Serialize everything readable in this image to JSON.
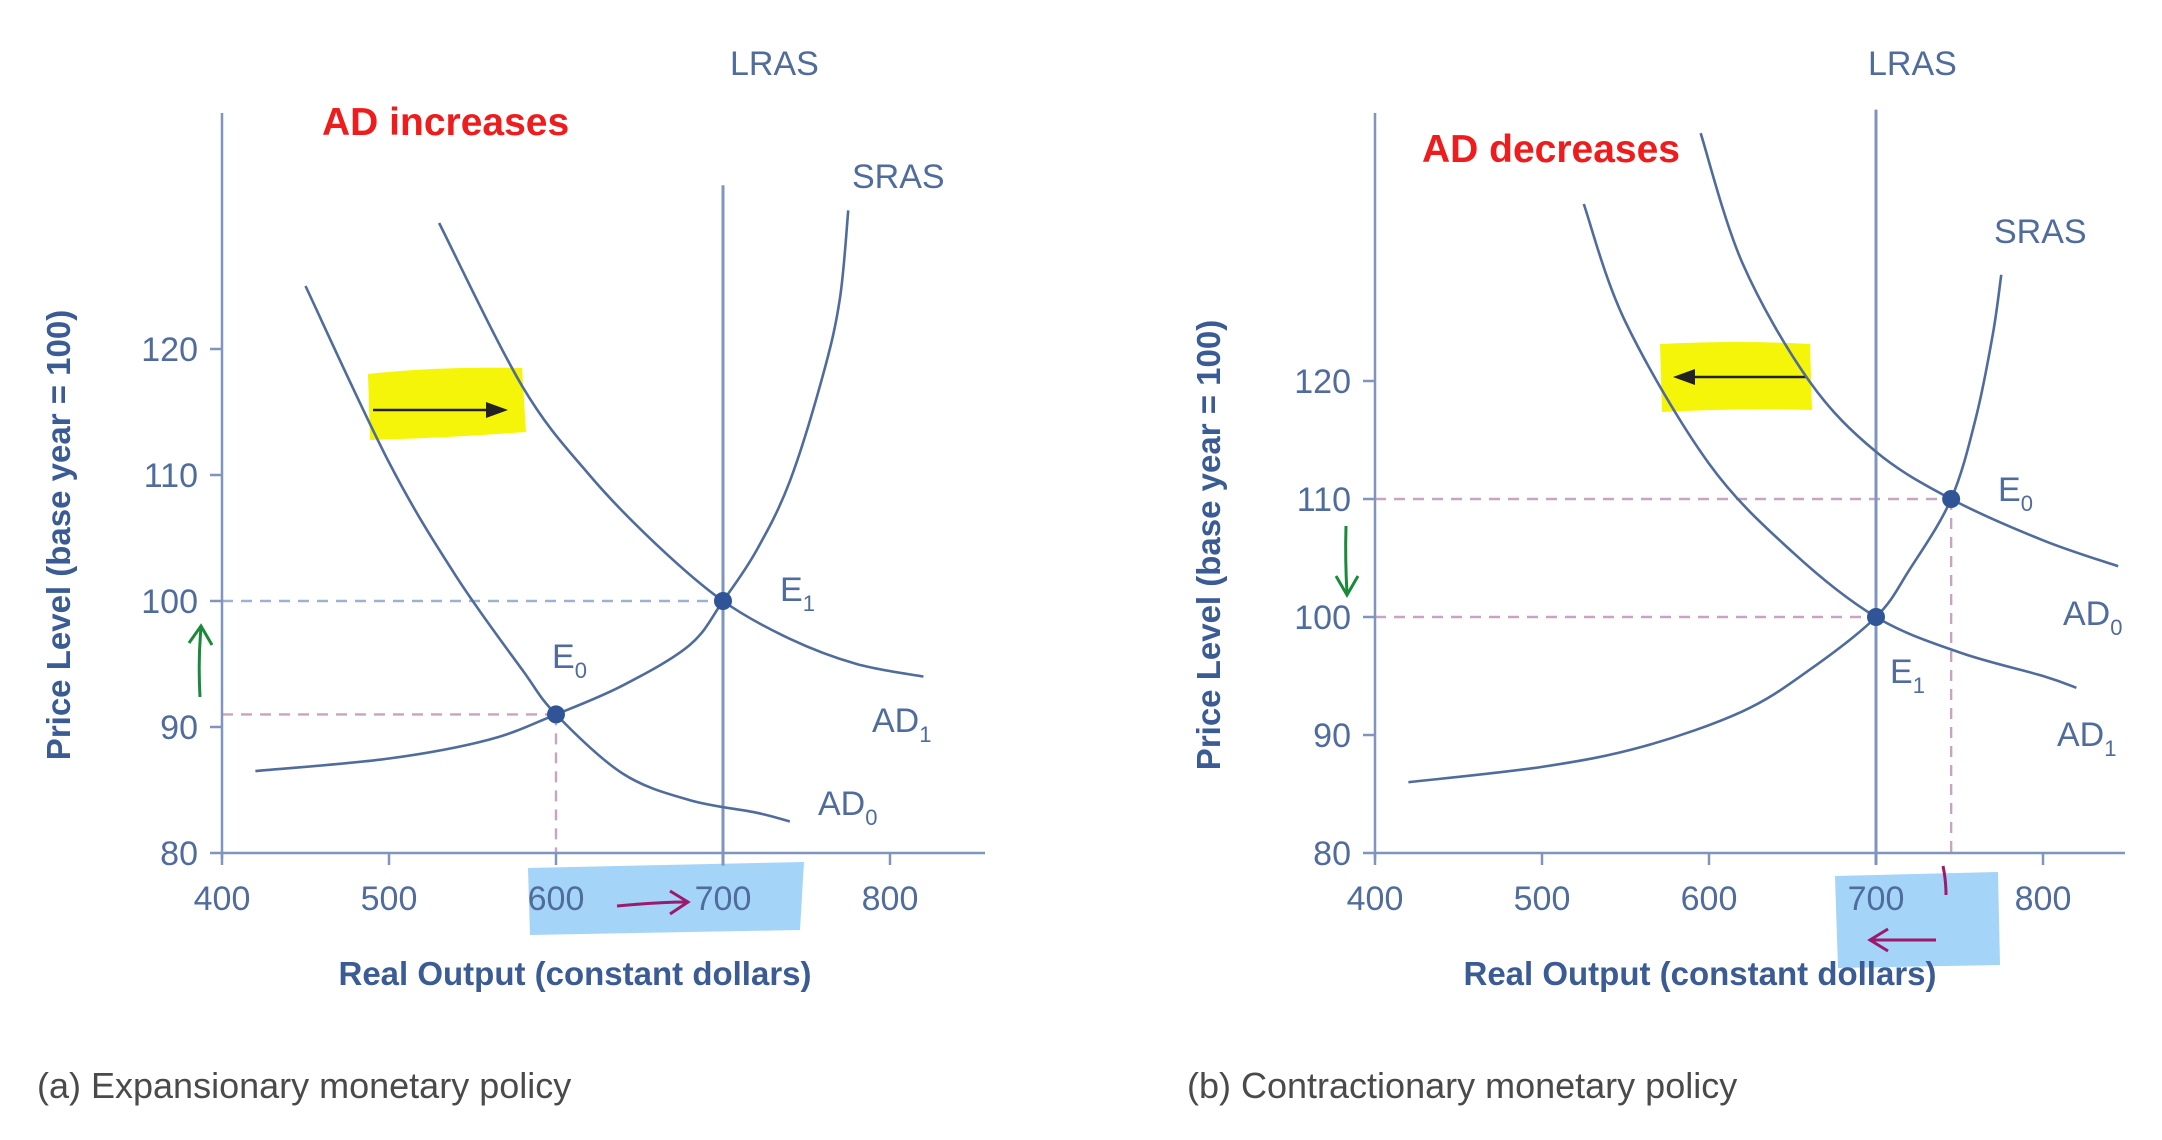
{
  "chart_data": [
    {
      "type": "line",
      "id": "a",
      "caption": "(a)  Expansionary monetary policy",
      "annotation": "AD increases",
      "xlabel": "Real Output (constant dollars)",
      "ylabel": "Price Level (base year = 100)",
      "xlim": [
        400,
        850
      ],
      "ylim": [
        80,
        125
      ],
      "xticks": [
        400,
        500,
        600,
        700,
        800
      ],
      "yticks": [
        80,
        90,
        100,
        110,
        120
      ],
      "series": [
        {
          "name": "SRAS",
          "key": "sras",
          "x": [
            420,
            500,
            560,
            600,
            640,
            680,
            700,
            720,
            740,
            760,
            770,
            775
          ],
          "y": [
            86.5,
            87.5,
            89,
            91,
            93.3,
            96.5,
            100,
            104,
            109.5,
            118,
            124,
            131
          ]
        },
        {
          "name": "LRAS",
          "key": "lras",
          "x": [
            700,
            700
          ],
          "y": [
            79,
            133
          ]
        },
        {
          "name": "AD",
          "sub": "0",
          "key": "ad0",
          "x": [
            450,
            500,
            540,
            580,
            600,
            640,
            680,
            720,
            740
          ],
          "y": [
            125,
            111,
            102,
            94.5,
            91,
            86.3,
            84.2,
            83.2,
            82.5
          ]
        },
        {
          "name": "AD",
          "sub": "1",
          "key": "ad1",
          "x": [
            530,
            580,
            620,
            660,
            700,
            740,
            780,
            820
          ],
          "y": [
            130,
            117,
            110,
            104.5,
            100,
            97,
            95,
            94
          ]
        }
      ],
      "points": [
        {
          "name": "E",
          "sub": "0",
          "x": 600,
          "y": 91
        },
        {
          "name": "E",
          "sub": "1",
          "x": 700,
          "y": 100
        }
      ]
    },
    {
      "type": "line",
      "id": "b",
      "caption": "(b) Contractionary monetary policy",
      "annotation": "AD decreases",
      "xlabel": "Real Output (constant dollars)",
      "ylabel": "Price Level (base year = 100)",
      "xlim": [
        400,
        850
      ],
      "ylim": [
        80,
        125
      ],
      "xticks": [
        400,
        500,
        600,
        700,
        800
      ],
      "yticks": [
        80,
        90,
        100,
        110,
        120
      ],
      "series": [
        {
          "name": "SRAS",
          "key": "sras",
          "x": [
            420,
            500,
            560,
            620,
            660,
            700,
            720,
            745,
            760,
            770,
            775
          ],
          "y": [
            86,
            87.3,
            89,
            92,
            95.5,
            100,
            104,
            110,
            117,
            124,
            129
          ]
        },
        {
          "name": "LRAS",
          "key": "lras",
          "x": [
            700,
            700
          ],
          "y": [
            79,
            143
          ]
        },
        {
          "name": "AD",
          "sub": "0",
          "key": "ad0",
          "x": [
            595,
            620,
            660,
            700,
            745,
            800,
            845
          ],
          "y": [
            141,
            130,
            120,
            114,
            110,
            106.5,
            104.3
          ]
        },
        {
          "name": "AD",
          "sub": "1",
          "key": "ad1",
          "x": [
            525,
            550,
            600,
            650,
            700,
            750,
            800,
            820
          ],
          "y": [
            135,
            125,
            113,
            105.5,
            100,
            97,
            95,
            94
          ]
        }
      ],
      "points": [
        {
          "name": "E",
          "sub": "0",
          "x": 745,
          "y": 110
        },
        {
          "name": "E",
          "sub": "1",
          "x": 700,
          "y": 100
        }
      ]
    }
  ]
}
